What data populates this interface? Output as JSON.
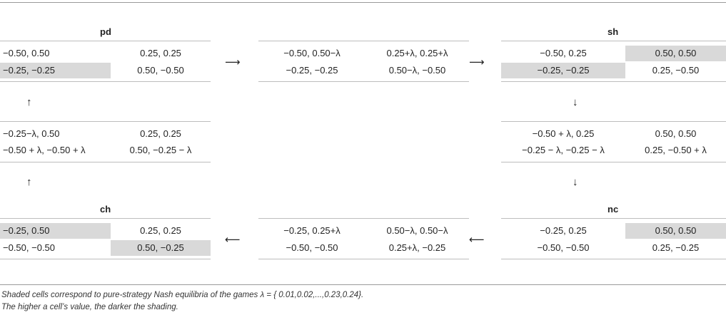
{
  "games": {
    "pd": {
      "label": "pd",
      "r1c1": "−0.50, 0.50",
      "r1c2": "0.25, 0.25",
      "r2c1": "−0.25, −0.25",
      "r2c2": "0.50, −0.50"
    },
    "mid_top": {
      "r1c1": "−0.50, 0.50−λ",
      "r1c2": "0.25+λ, 0.25+λ",
      "r2c1": "−0.25, −0.25",
      "r2c2": "0.50−λ, −0.50"
    },
    "sh": {
      "label": "sh",
      "r1c1": "−0.50, 0.25",
      "r1c2": "0.50, 0.50",
      "r2c1": "−0.25, −0.25",
      "r2c2": "0.25, −0.50"
    },
    "left_mid": {
      "r1c1": "−0.25−λ, 0.50",
      "r1c2": "0.25, 0.25",
      "r2c1": "−0.50 + λ, −0.50 + λ",
      "r2c2": "0.50, −0.25 − λ"
    },
    "right_mid": {
      "r1c1": "−0.50 + λ, 0.25",
      "r1c2": "0.50, 0.50",
      "r2c1": "−0.25 − λ, −0.25 − λ",
      "r2c2": "0.25, −0.50 + λ"
    },
    "ch": {
      "label": "ch",
      "r1c1": "−0.25, 0.50",
      "r1c2": "0.25, 0.25",
      "r2c1": "−0.50, −0.50",
      "r2c2": "0.50, −0.25"
    },
    "mid_bottom": {
      "r1c1": "−0.25, 0.25+λ",
      "r1c2": "0.50−λ, 0.50−λ",
      "r2c1": "−0.50, −0.50",
      "r2c2": "0.25+λ, −0.25"
    },
    "nc": {
      "label": "nc",
      "r1c1": "−0.25, 0.25",
      "r1c2": "0.50, 0.50",
      "r2c1": "−0.50, −0.50",
      "r2c2": "0.25, −0.25"
    }
  },
  "arrows": {
    "right": "⟶",
    "left": "⟵",
    "up": "↑",
    "down": "↓"
  },
  "footnote": {
    "line1": "Shaded cells correspond to pure-strategy Nash equilibria of the games λ = { 0.01,0.02,...,0.23,0.24}.",
    "line2": "The higher a cell’s value, the darker the shading."
  },
  "colors": {
    "shade": "#d9d9d9",
    "rule": "#9a9a9a"
  }
}
